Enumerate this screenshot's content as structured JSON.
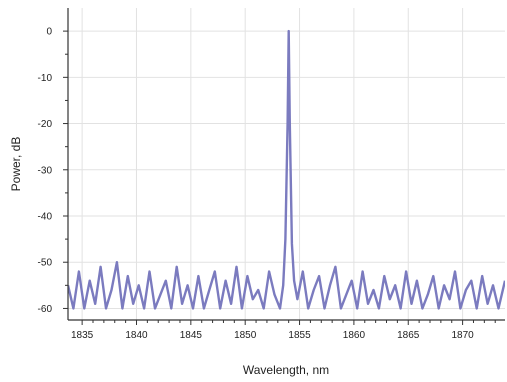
{
  "chart_data": {
    "type": "line",
    "title": "",
    "xlabel": "Wavelength, nm",
    "ylabel": "Power, dB",
    "xlim": [
      1833.7,
      1873.9
    ],
    "ylim": [
      -62.5,
      5
    ],
    "xticks": [
      1835,
      1840,
      1845,
      1850,
      1855,
      1860,
      1865,
      1870
    ],
    "xtick_labels": [
      "1835",
      "1840",
      "1845",
      "1850",
      "1855",
      "1860",
      "1865",
      "1870"
    ],
    "yticks": [
      0,
      -10,
      -20,
      -30,
      -40,
      -50,
      -60
    ],
    "ytick_labels": [
      "0",
      "-10",
      "-20",
      "-30",
      "-40",
      "-50",
      "-60"
    ],
    "grid": true,
    "legend": "none",
    "series": [
      {
        "color": "#7b7bbf",
        "peak": {
          "x": 1854.0,
          "y": 0
        },
        "noise_floor": {
          "min": -60,
          "max": -50
        },
        "x": [
          1833.7,
          1834.2,
          1834.7,
          1835.2,
          1835.7,
          1836.2,
          1836.7,
          1837.2,
          1837.7,
          1838.2,
          1838.7,
          1839.2,
          1839.7,
          1840.2,
          1840.7,
          1841.2,
          1841.7,
          1842.2,
          1842.7,
          1843.2,
          1843.7,
          1844.2,
          1844.7,
          1845.2,
          1845.7,
          1846.2,
          1846.7,
          1847.2,
          1847.7,
          1848.2,
          1848.7,
          1849.2,
          1849.7,
          1850.2,
          1850.7,
          1851.2,
          1851.7,
          1852.2,
          1852.7,
          1853.2,
          1853.5,
          1853.7,
          1853.9,
          1854.0,
          1854.1,
          1854.3,
          1854.5,
          1854.8,
          1855.3,
          1855.8,
          1856.3,
          1856.8,
          1857.3,
          1857.8,
          1858.3,
          1858.8,
          1859.3,
          1859.8,
          1860.3,
          1860.8,
          1861.3,
          1861.8,
          1862.3,
          1862.8,
          1863.3,
          1863.8,
          1864.3,
          1864.8,
          1865.3,
          1865.8,
          1866.3,
          1866.8,
          1867.3,
          1867.8,
          1868.3,
          1868.8,
          1869.3,
          1869.8,
          1870.3,
          1870.8,
          1871.3,
          1871.8,
          1872.3,
          1872.8,
          1873.3,
          1873.9
        ],
        "y": [
          -55,
          -60,
          -52,
          -60,
          -54,
          -59,
          -51,
          -60,
          -56,
          -50,
          -60,
          -53,
          -59,
          -55,
          -60,
          -52,
          -60,
          -57,
          -54,
          -60,
          -51,
          -59,
          -55,
          -60,
          -53,
          -60,
          -56,
          -52,
          -60,
          -54,
          -59,
          -51,
          -60,
          -53,
          -58,
          -56,
          -60,
          -52,
          -57,
          -60,
          -55,
          -45,
          -20,
          0,
          -20,
          -46,
          -54,
          -58,
          -52,
          -60,
          -56,
          -53,
          -60,
          -55,
          -51,
          -60,
          -57,
          -54,
          -60,
          -52,
          -59,
          -56,
          -60,
          -53,
          -58,
          -55,
          -60,
          -52,
          -59,
          -54,
          -60,
          -57,
          -53,
          -60,
          -55,
          -58,
          -52,
          -60,
          -56,
          -54,
          -60,
          -53,
          -59,
          -55,
          -60,
          -54
        ]
      }
    ]
  }
}
